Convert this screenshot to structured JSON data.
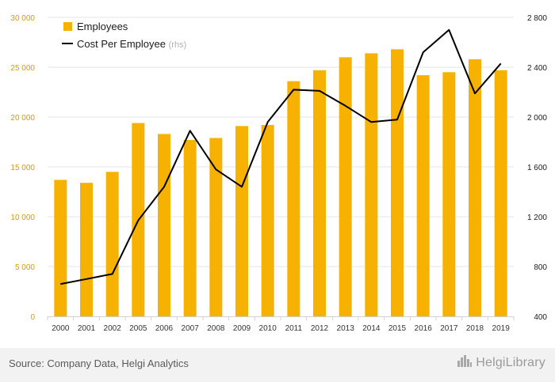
{
  "chart_data": {
    "type": "bar",
    "categories": [
      "2000",
      "2001",
      "2002",
      "2005",
      "2006",
      "2007",
      "2008",
      "2009",
      "2010",
      "2011",
      "2012",
      "2013",
      "2014",
      "2015",
      "2016",
      "2017",
      "2018",
      "2019"
    ],
    "series": [
      {
        "name": "Employees",
        "type": "bar",
        "axis": "left",
        "color": "#F7B100",
        "values": [
          13700,
          13400,
          14500,
          19400,
          18300,
          17700,
          17900,
          19100,
          19200,
          23600,
          24700,
          26000,
          26400,
          26800,
          24200,
          24500,
          25800,
          24700
        ]
      },
      {
        "name": "Cost Per Employee",
        "type": "line",
        "axis": "right",
        "color": "#000000",
        "values": [
          660,
          700,
          740,
          1170,
          1440,
          1890,
          1580,
          1440,
          1960,
          2220,
          2210,
          2090,
          1960,
          1980,
          2520,
          2700,
          2190,
          2430
        ]
      }
    ],
    "legend": {
      "position": "top-left",
      "items": [
        {
          "label": "Employees",
          "suffix": ""
        },
        {
          "label": "Cost Per Employee",
          "suffix": "(rhs)"
        }
      ]
    },
    "y_left": {
      "ylim": [
        0,
        30000
      ],
      "ticks": [
        0,
        5000,
        10000,
        15000,
        20000,
        25000,
        30000
      ],
      "tick_labels": [
        "0",
        "5 000",
        "10 000",
        "15 000",
        "20 000",
        "25 000",
        "30 000"
      ]
    },
    "y_right": {
      "ylim": [
        400,
        2800
      ],
      "ticks": [
        400,
        800,
        1200,
        1600,
        2000,
        2400,
        2800
      ],
      "tick_labels": [
        "400",
        "800",
        "1 200",
        "1 600",
        "2 000",
        "2 400",
        "2 800"
      ]
    },
    "grid": true
  },
  "footer": {
    "source": "Source: Company Data, Helgi Analytics",
    "brand": "HelgiLibrary",
    "brand_icon": "city-skyline-icon"
  }
}
